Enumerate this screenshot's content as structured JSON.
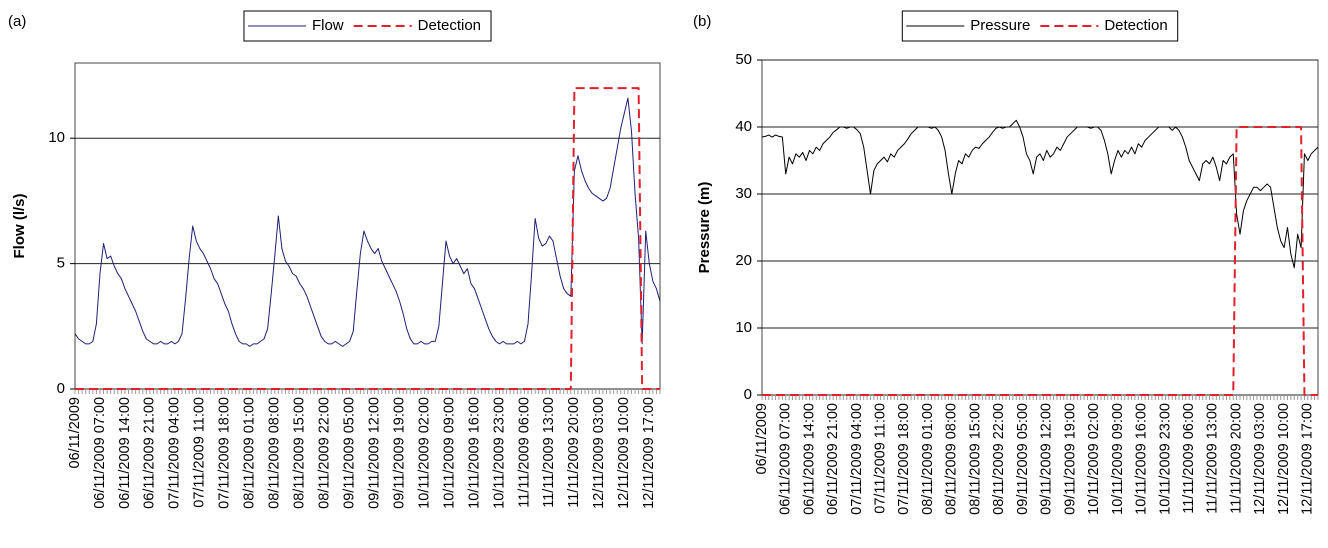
{
  "chart_data": [
    {
      "type": "line",
      "panel_label": "(a)",
      "ylabel": "Flow (l/s)",
      "ylim": [
        0,
        13
      ],
      "yticks": [
        0,
        5,
        10
      ],
      "grid": true,
      "legend": "top",
      "categories": [
        "06/11/2009",
        null,
        null,
        null,
        null,
        null,
        null,
        "06/11/2009 07:00",
        null,
        null,
        null,
        null,
        null,
        null,
        "06/11/2009 14:00",
        null,
        null,
        null,
        null,
        null,
        null,
        "06/11/2009 21:00",
        null,
        null,
        null,
        null,
        null,
        null,
        "07/11/2009 04:00",
        null,
        null,
        null,
        null,
        null,
        null,
        "07/11/2009 11:00",
        null,
        null,
        null,
        null,
        null,
        null,
        "07/11/2009 18:00",
        null,
        null,
        null,
        null,
        null,
        null,
        "08/11/2009 01:00",
        null,
        null,
        null,
        null,
        null,
        null,
        "08/11/2009 08:00",
        null,
        null,
        null,
        null,
        null,
        null,
        "08/11/2009 15:00",
        null,
        null,
        null,
        null,
        null,
        null,
        "08/11/2009 22:00",
        null,
        null,
        null,
        null,
        null,
        null,
        "09/11/2009 05:00",
        null,
        null,
        null,
        null,
        null,
        null,
        "09/11/2009 12:00",
        null,
        null,
        null,
        null,
        null,
        null,
        "09/11/2009 19:00",
        null,
        null,
        null,
        null,
        null,
        null,
        "10/11/2009 02:00",
        null,
        null,
        null,
        null,
        null,
        null,
        "10/11/2009 09:00",
        null,
        null,
        null,
        null,
        null,
        null,
        "10/11/2009 16:00",
        null,
        null,
        null,
        null,
        null,
        null,
        "10/11/2009 23:00",
        null,
        null,
        null,
        null,
        null,
        null,
        "11/11/2009 06:00",
        null,
        null,
        null,
        null,
        null,
        null,
        "11/11/2009 13:00",
        null,
        null,
        null,
        null,
        null,
        null,
        "11/11/2009 20:00",
        null,
        null,
        null,
        null,
        null,
        null,
        "12/11/2009 03:00",
        null,
        null,
        null,
        null,
        null,
        null,
        "12/11/2009 10:00",
        null,
        null,
        null,
        null,
        null,
        null,
        "12/11/2009 17:00",
        null,
        null,
        null
      ],
      "series": [
        {
          "name": "Flow",
          "color": "#1f1f78",
          "line_style": "solid",
          "values": [
            2.2,
            2.0,
            1.9,
            1.8,
            1.8,
            1.9,
            2.6,
            4.6,
            5.8,
            5.2,
            5.3,
            4.9,
            4.6,
            4.4,
            4.0,
            3.7,
            3.4,
            3.1,
            2.7,
            2.3,
            2.0,
            1.9,
            1.8,
            1.8,
            1.9,
            1.8,
            1.8,
            1.9,
            1.8,
            1.9,
            2.2,
            3.6,
            5.2,
            6.5,
            5.9,
            5.6,
            5.4,
            5.1,
            4.8,
            4.4,
            4.2,
            3.8,
            3.4,
            3.1,
            2.6,
            2.2,
            1.9,
            1.8,
            1.8,
            1.7,
            1.8,
            1.8,
            1.9,
            2.0,
            2.4,
            3.8,
            5.3,
            6.9,
            5.6,
            5.1,
            4.9,
            4.6,
            4.5,
            4.2,
            4.0,
            3.7,
            3.3,
            2.9,
            2.5,
            2.1,
            1.9,
            1.8,
            1.8,
            1.9,
            1.8,
            1.7,
            1.8,
            1.9,
            2.3,
            3.9,
            5.4,
            6.3,
            5.9,
            5.6,
            5.4,
            5.6,
            5.1,
            4.8,
            4.5,
            4.2,
            3.9,
            3.5,
            3.0,
            2.4,
            2.0,
            1.8,
            1.8,
            1.9,
            1.8,
            1.8,
            1.9,
            1.9,
            2.5,
            4.2,
            5.9,
            5.3,
            5.0,
            5.2,
            4.9,
            4.6,
            4.8,
            4.2,
            4.0,
            3.6,
            3.2,
            2.8,
            2.4,
            2.1,
            1.9,
            1.8,
            1.9,
            1.8,
            1.8,
            1.8,
            1.9,
            1.8,
            1.9,
            2.6,
            4.6,
            6.8,
            6.0,
            5.7,
            5.8,
            6.1,
            5.9,
            5.2,
            4.5,
            4.0,
            3.8,
            3.7,
            8.7,
            9.3,
            8.7,
            8.3,
            8.0,
            7.8,
            7.7,
            7.6,
            7.5,
            7.6,
            8.0,
            8.8,
            9.6,
            10.4,
            11.0,
            11.6,
            10.3,
            7.8,
            6.0,
            1.8,
            6.3,
            5.0,
            4.3,
            4.0,
            3.5
          ]
        },
        {
          "name": "Detection",
          "color": "#e0202a",
          "line_style": "dashed",
          "values": [
            0,
            0,
            0,
            0,
            0,
            0,
            0,
            0,
            0,
            0,
            0,
            0,
            0,
            0,
            0,
            0,
            0,
            0,
            0,
            0,
            0,
            0,
            0,
            0,
            0,
            0,
            0,
            0,
            0,
            0,
            0,
            0,
            0,
            0,
            0,
            0,
            0,
            0,
            0,
            0,
            0,
            0,
            0,
            0,
            0,
            0,
            0,
            0,
            0,
            0,
            0,
            0,
            0,
            0,
            0,
            0,
            0,
            0,
            0,
            0,
            0,
            0,
            0,
            0,
            0,
            0,
            0,
            0,
            0,
            0,
            0,
            0,
            0,
            0,
            0,
            0,
            0,
            0,
            0,
            0,
            0,
            0,
            0,
            0,
            0,
            0,
            0,
            0,
            0,
            0,
            0,
            0,
            0,
            0,
            0,
            0,
            0,
            0,
            0,
            0,
            0,
            0,
            0,
            0,
            0,
            0,
            0,
            0,
            0,
            0,
            0,
            0,
            0,
            0,
            0,
            0,
            0,
            0,
            0,
            0,
            0,
            0,
            0,
            0,
            0,
            0,
            0,
            0,
            0,
            0,
            0,
            0,
            0,
            0,
            0,
            0,
            0,
            0,
            0,
            0,
            12,
            12,
            12,
            12,
            12,
            12,
            12,
            12,
            12,
            12,
            12,
            12,
            12,
            12,
            12,
            12,
            12,
            12,
            12,
            0,
            0,
            0,
            0,
            0,
            0
          ]
        }
      ]
    },
    {
      "type": "line",
      "panel_label": "(b)",
      "ylabel": "Pressure (m)",
      "ylim": [
        0,
        50
      ],
      "yticks": [
        0,
        10,
        20,
        30,
        40,
        50
      ],
      "grid": true,
      "legend": "top",
      "categories": [
        "06/11/2009",
        null,
        null,
        null,
        null,
        null,
        null,
        "06/11/2009 07:00",
        null,
        null,
        null,
        null,
        null,
        null,
        "06/11/2009 14:00",
        null,
        null,
        null,
        null,
        null,
        null,
        "06/11/2009 21:00",
        null,
        null,
        null,
        null,
        null,
        null,
        "07/11/2009 04:00",
        null,
        null,
        null,
        null,
        null,
        null,
        "07/11/2009 11:00",
        null,
        null,
        null,
        null,
        null,
        null,
        "07/11/2009 18:00",
        null,
        null,
        null,
        null,
        null,
        null,
        "08/11/2009 01:00",
        null,
        null,
        null,
        null,
        null,
        null,
        "08/11/2009 08:00",
        null,
        null,
        null,
        null,
        null,
        null,
        "08/11/2009 15:00",
        null,
        null,
        null,
        null,
        null,
        null,
        "08/11/2009 22:00",
        null,
        null,
        null,
        null,
        null,
        null,
        "09/11/2009 05:00",
        null,
        null,
        null,
        null,
        null,
        null,
        "09/11/2009 12:00",
        null,
        null,
        null,
        null,
        null,
        null,
        "09/11/2009 19:00",
        null,
        null,
        null,
        null,
        null,
        null,
        "10/11/2009 02:00",
        null,
        null,
        null,
        null,
        null,
        null,
        "10/11/2009 09:00",
        null,
        null,
        null,
        null,
        null,
        null,
        "10/11/2009 16:00",
        null,
        null,
        null,
        null,
        null,
        null,
        "10/11/2009 23:00",
        null,
        null,
        null,
        null,
        null,
        null,
        "11/11/2009 06:00",
        null,
        null,
        null,
        null,
        null,
        null,
        "11/11/2009 13:00",
        null,
        null,
        null,
        null,
        null,
        null,
        "11/11/2009 20:00",
        null,
        null,
        null,
        null,
        null,
        null,
        "12/11/2009 03:00",
        null,
        null,
        null,
        null,
        null,
        null,
        "12/11/2009 10:00",
        null,
        null,
        null,
        null,
        null,
        null,
        "12/11/2009 17:00",
        null,
        null,
        null
      ],
      "series": [
        {
          "name": "Pressure",
          "color": "#000000",
          "line_style": "solid",
          "values": [
            38.5,
            38.6,
            38.8,
            38.5,
            38.8,
            38.6,
            38.5,
            33.0,
            35.5,
            34.5,
            36.0,
            35.5,
            36.2,
            35.0,
            36.5,
            36.0,
            37.0,
            36.5,
            37.5,
            38.0,
            38.5,
            39.2,
            39.6,
            40.0,
            40.0,
            39.8,
            40.0,
            40.0,
            39.6,
            39.0,
            37.0,
            33.5,
            30.0,
            33.5,
            34.5,
            35.0,
            35.5,
            34.8,
            36.0,
            35.5,
            36.5,
            37.0,
            37.5,
            38.2,
            39.0,
            39.5,
            40.0,
            40.0,
            40.0,
            40.0,
            39.8,
            40.0,
            39.5,
            38.5,
            36.5,
            33.0,
            30.0,
            33.0,
            35.0,
            34.5,
            36.0,
            35.5,
            36.5,
            37.0,
            36.8,
            37.5,
            38.0,
            38.5,
            39.2,
            39.8,
            40.0,
            39.8,
            40.0,
            40.0,
            40.5,
            41.0,
            40.0,
            38.5,
            36.0,
            35.0,
            33.0,
            35.5,
            36.0,
            35.0,
            36.5,
            35.5,
            36.0,
            37.0,
            36.5,
            37.5,
            38.5,
            39.0,
            39.5,
            40.0,
            40.0,
            40.0,
            40.0,
            39.8,
            40.0,
            40.0,
            39.5,
            38.0,
            36.0,
            33.0,
            35.0,
            36.5,
            35.5,
            36.5,
            36.0,
            37.0,
            36.0,
            37.5,
            37.0,
            38.0,
            38.5,
            39.0,
            39.5,
            40.0,
            40.0,
            40.0,
            40.0,
            39.5,
            40.0,
            39.5,
            38.5,
            37.0,
            35.0,
            34.0,
            33.0,
            32.0,
            34.5,
            35.0,
            34.5,
            35.5,
            34.0,
            32.0,
            35.0,
            34.5,
            35.5,
            36.0,
            27.0,
            24.0,
            27.5,
            29.0,
            30.0,
            31.0,
            31.0,
            30.5,
            31.0,
            31.5,
            31.0,
            28.0,
            25.0,
            23.0,
            22.0,
            25.0,
            21.0,
            19.0,
            24.0,
            22.0,
            36.0,
            35.0,
            36.0,
            36.5,
            37.0
          ]
        },
        {
          "name": "Detection",
          "color": "#e0202a",
          "line_style": "dashed",
          "values": [
            0,
            0,
            0,
            0,
            0,
            0,
            0,
            0,
            0,
            0,
            0,
            0,
            0,
            0,
            0,
            0,
            0,
            0,
            0,
            0,
            0,
            0,
            0,
            0,
            0,
            0,
            0,
            0,
            0,
            0,
            0,
            0,
            0,
            0,
            0,
            0,
            0,
            0,
            0,
            0,
            0,
            0,
            0,
            0,
            0,
            0,
            0,
            0,
            0,
            0,
            0,
            0,
            0,
            0,
            0,
            0,
            0,
            0,
            0,
            0,
            0,
            0,
            0,
            0,
            0,
            0,
            0,
            0,
            0,
            0,
            0,
            0,
            0,
            0,
            0,
            0,
            0,
            0,
            0,
            0,
            0,
            0,
            0,
            0,
            0,
            0,
            0,
            0,
            0,
            0,
            0,
            0,
            0,
            0,
            0,
            0,
            0,
            0,
            0,
            0,
            0,
            0,
            0,
            0,
            0,
            0,
            0,
            0,
            0,
            0,
            0,
            0,
            0,
            0,
            0,
            0,
            0,
            0,
            0,
            0,
            0,
            0,
            0,
            0,
            0,
            0,
            0,
            0,
            0,
            0,
            0,
            0,
            0,
            0,
            0,
            0,
            0,
            0,
            0,
            0,
            40,
            40,
            40,
            40,
            40,
            40,
            40,
            40,
            40,
            40,
            40,
            40,
            40,
            40,
            40,
            40,
            40,
            40,
            40,
            40,
            0,
            0,
            0,
            0,
            0
          ]
        }
      ]
    }
  ]
}
